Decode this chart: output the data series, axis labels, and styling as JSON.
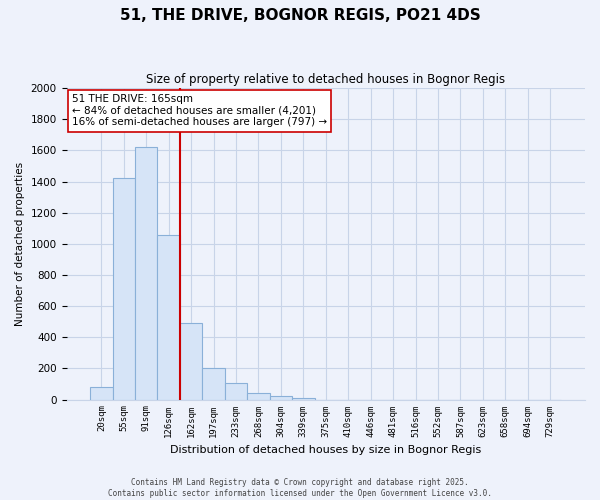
{
  "title": "51, THE DRIVE, BOGNOR REGIS, PO21 4DS",
  "subtitle": "Size of property relative to detached houses in Bognor Regis",
  "xlabel": "Distribution of detached houses by size in Bognor Regis",
  "ylabel": "Number of detached properties",
  "bar_labels": [
    "20sqm",
    "55sqm",
    "91sqm",
    "126sqm",
    "162sqm",
    "197sqm",
    "233sqm",
    "268sqm",
    "304sqm",
    "339sqm",
    "375sqm",
    "410sqm",
    "446sqm",
    "481sqm",
    "516sqm",
    "552sqm",
    "587sqm",
    "623sqm",
    "658sqm",
    "694sqm",
    "729sqm"
  ],
  "bar_values": [
    80,
    1420,
    1620,
    1055,
    490,
    205,
    108,
    40,
    20,
    10,
    0,
    0,
    0,
    0,
    0,
    0,
    0,
    0,
    0,
    0,
    0
  ],
  "bar_color": "#d6e4f7",
  "bar_edge_color": "#8ab0d8",
  "vline_color": "#cc0000",
  "vline_index": 3.5,
  "annotation_title": "51 THE DRIVE: 165sqm",
  "annotation_line1": "← 84% of detached houses are smaller (4,201)",
  "annotation_line2": "16% of semi-detached houses are larger (797) →",
  "ylim": [
    0,
    2000
  ],
  "yticks": [
    0,
    200,
    400,
    600,
    800,
    1000,
    1200,
    1400,
    1600,
    1800,
    2000
  ],
  "footnote1": "Contains HM Land Registry data © Crown copyright and database right 2025.",
  "footnote2": "Contains public sector information licensed under the Open Government Licence v3.0.",
  "background_color": "#eef2fb",
  "grid_color": "#c8d4e8",
  "plot_bg_color": "#eef2fb"
}
